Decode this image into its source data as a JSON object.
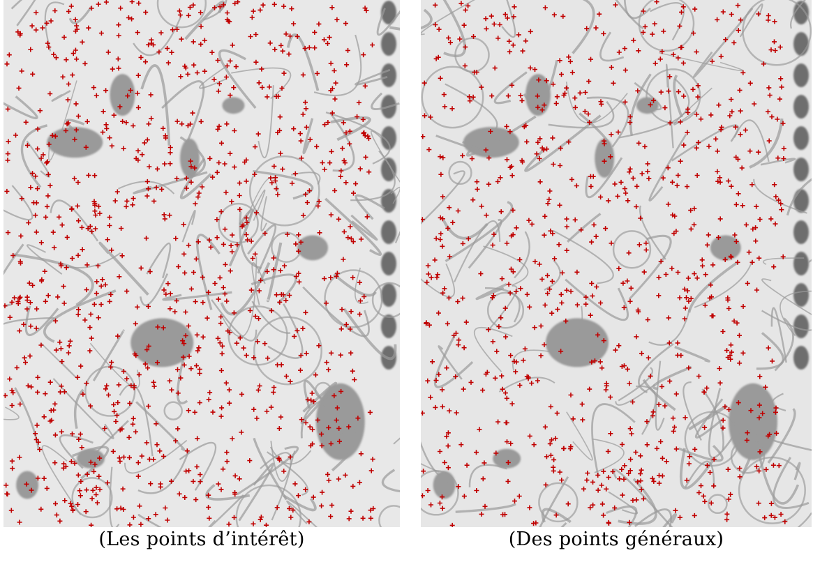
{
  "figure": {
    "panels": [
      {
        "id": "left",
        "caption": "(Les points d’intérêt)",
        "marker_count": 900,
        "marker_color": "#c00000",
        "background_color": "#e6e6e6"
      },
      {
        "id": "right",
        "caption": "(Des points généraux)",
        "marker_count": 760,
        "marker_color": "#c00000",
        "background_color": "#e6e6e6"
      }
    ]
  }
}
